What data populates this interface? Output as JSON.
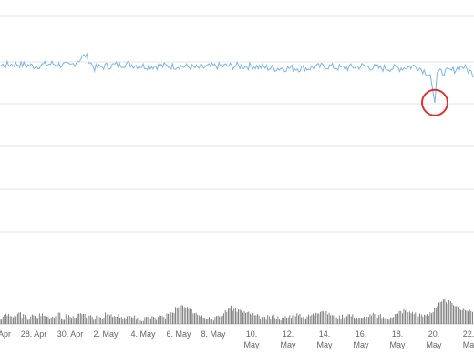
{
  "chart_data": {
    "type": "line",
    "title": "",
    "xlabel": "",
    "ylabel": "",
    "x_tick_labels": [
      {
        "line1": "Apr",
        "line2": ""
      },
      {
        "line1": "28. Apr",
        "line2": ""
      },
      {
        "line1": "30. Apr",
        "line2": ""
      },
      {
        "line1": "2. May",
        "line2": ""
      },
      {
        "line1": "4. May",
        "line2": ""
      },
      {
        "line1": "6. May",
        "line2": ""
      },
      {
        "line1": "8. May",
        "line2": ""
      },
      {
        "line1": "10.",
        "line2": "May"
      },
      {
        "line1": "12.",
        "line2": "May"
      },
      {
        "line1": "14.",
        "line2": "May"
      },
      {
        "line1": "16.",
        "line2": "May"
      },
      {
        "line1": "18.",
        "line2": "May"
      },
      {
        "line1": "20.",
        "line2": "May"
      },
      {
        "line1": "22.",
        "line2": "Ma"
      }
    ],
    "x_range": [
      "2020-04-24",
      "2020-05-23"
    ],
    "ylim": [
      0,
      1
    ],
    "grid": true,
    "series": [
      {
        "color": "#7cb5ec",
        "points": [
          [
            "2020-04-24T00:00",
            0.77
          ],
          [
            "2020-04-25T00:00",
            0.78
          ],
          [
            "2020-04-26T00:00",
            0.77
          ],
          [
            "2020-04-27T00:00",
            0.78
          ],
          [
            "2020-04-28T00:00",
            0.77
          ],
          [
            "2020-04-29T00:00",
            0.78
          ],
          [
            "2020-04-30T00:00",
            0.77
          ],
          [
            "2020-04-30T20:00",
            0.82
          ],
          [
            "2020-05-01T08:00",
            0.76
          ],
          [
            "2020-05-02T00:00",
            0.77
          ],
          [
            "2020-05-03T00:00",
            0.78
          ],
          [
            "2020-05-04T00:00",
            0.77
          ],
          [
            "2020-05-05T00:00",
            0.77
          ],
          [
            "2020-05-06T00:00",
            0.77
          ],
          [
            "2020-05-07T00:00",
            0.76
          ],
          [
            "2020-05-08T00:00",
            0.77
          ],
          [
            "2020-05-09T00:00",
            0.77
          ],
          [
            "2020-05-10T00:00",
            0.77
          ],
          [
            "2020-05-11T00:00",
            0.76
          ],
          [
            "2020-05-12T00:00",
            0.76
          ],
          [
            "2020-05-13T00:00",
            0.76
          ],
          [
            "2020-05-14T00:00",
            0.77
          ],
          [
            "2020-05-15T00:00",
            0.76
          ],
          [
            "2020-05-16T00:00",
            0.77
          ],
          [
            "2020-05-17T00:00",
            0.76
          ],
          [
            "2020-05-18T00:00",
            0.76
          ],
          [
            "2020-05-19T00:00",
            0.77
          ],
          [
            "2020-05-19T18:00",
            0.73
          ],
          [
            "2020-05-20T00:00",
            0.6
          ],
          [
            "2020-05-20T03:00",
            0.74
          ],
          [
            "2020-05-20T12:00",
            0.74
          ],
          [
            "2020-05-21T00:00",
            0.75
          ],
          [
            "2020-05-21T12:00",
            0.77
          ],
          [
            "2020-05-22T00:00",
            0.74
          ],
          [
            "2020-05-22T12:00",
            0.72
          ],
          [
            "2020-05-23T00:00",
            0.69
          ]
        ]
      }
    ],
    "highlight": {
      "x": "2020-05-20T00:00",
      "y": 0.6,
      "color": "#e03131"
    },
    "navigator": {
      "color": "#666666",
      "values": [
        0.2,
        0.35,
        0.3,
        0.25,
        0.4,
        0.3,
        0.2,
        0.3,
        0.25,
        0.35,
        0.3,
        0.25,
        0.3,
        0.35,
        0.2,
        0.3,
        0.25,
        0.3,
        0.35,
        0.3,
        0.25,
        0.2,
        0.3,
        0.25,
        0.35,
        0.3,
        0.25,
        0.3,
        0.2,
        0.25,
        0.3,
        0.2,
        0.15,
        0.2,
        0.25,
        0.2,
        0.3,
        0.25,
        0.35,
        0.4,
        0.55,
        0.7,
        0.65,
        0.6,
        0.45,
        0.35,
        0.3,
        0.25,
        0.2,
        0.25,
        0.3,
        0.45,
        0.6,
        0.55,
        0.5,
        0.45,
        0.4,
        0.35,
        0.3,
        0.25,
        0.2,
        0.25,
        0.3,
        0.25,
        0.2,
        0.25,
        0.3,
        0.35,
        0.3,
        0.25,
        0.3,
        0.35,
        0.45,
        0.5,
        0.4,
        0.35,
        0.3,
        0.25,
        0.3,
        0.35,
        0.3,
        0.25,
        0.2,
        0.25,
        0.3,
        0.35,
        0.3,
        0.25,
        0.2,
        0.3,
        0.35,
        0.45,
        0.5,
        0.45,
        0.4,
        0.35,
        0.3,
        0.35,
        0.45,
        0.6,
        0.75,
        0.85,
        0.8,
        0.7,
        0.6,
        0.55,
        0.5,
        0.45
      ]
    }
  }
}
